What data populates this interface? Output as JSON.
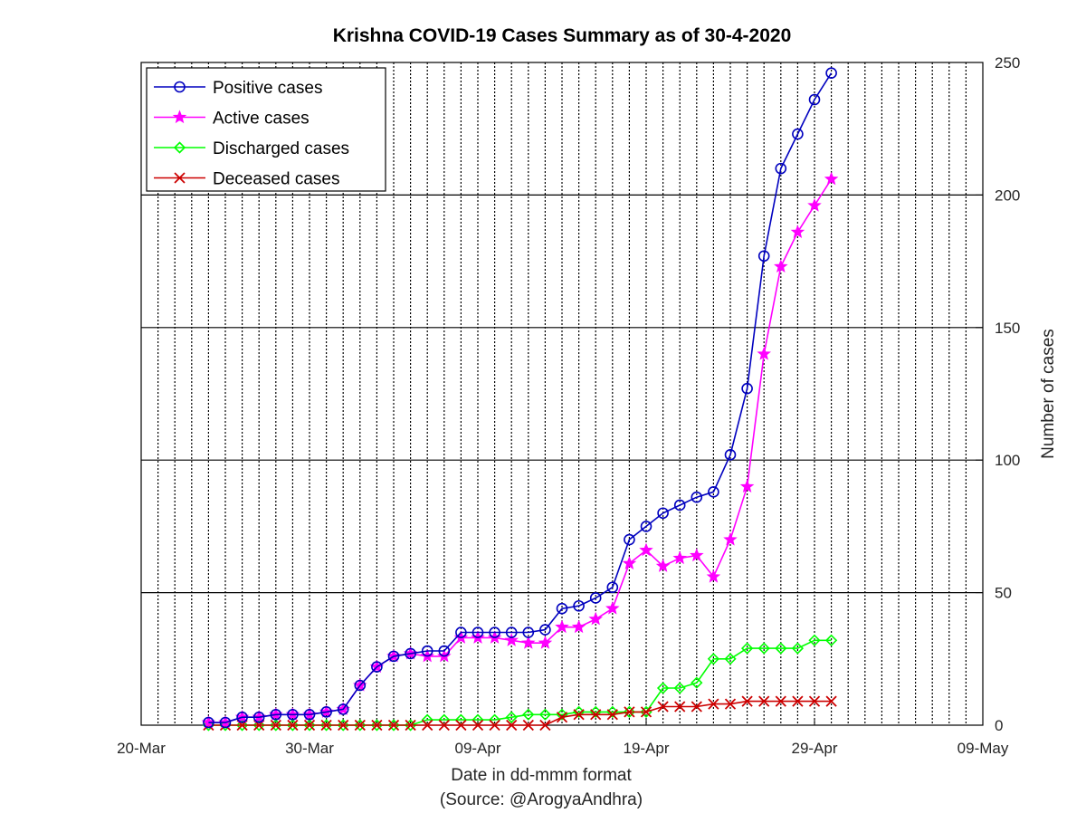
{
  "chart_data": {
    "type": "line",
    "title": "Krishna COVID-19 Cases Summary as of 30-4-2020",
    "xlabel": "Date in dd-mmm format",
    "xlabel_source": "(Source: @ArogyaAndhra)",
    "ylabel": "Number of cases",
    "x_ticks": [
      "20-Mar",
      "30-Mar",
      "09-Apr",
      "19-Apr",
      "29-Apr",
      "09-May"
    ],
    "y_ticks": [
      "0",
      "50",
      "100",
      "150",
      "200",
      "250"
    ],
    "xlim": [
      "2020-03-20",
      "2020-05-09"
    ],
    "ylim": [
      0,
      250
    ],
    "grid": {
      "x": "dotted-daily",
      "y": "solid"
    },
    "y_axis_position": "right",
    "legend_position": "top-left",
    "x": [
      "2020-03-24",
      "2020-03-25",
      "2020-03-26",
      "2020-03-27",
      "2020-03-28",
      "2020-03-29",
      "2020-03-30",
      "2020-03-31",
      "2020-04-01",
      "2020-04-02",
      "2020-04-03",
      "2020-04-04",
      "2020-04-05",
      "2020-04-06",
      "2020-04-07",
      "2020-04-08",
      "2020-04-09",
      "2020-04-10",
      "2020-04-11",
      "2020-04-12",
      "2020-04-13",
      "2020-04-14",
      "2020-04-15",
      "2020-04-16",
      "2020-04-17",
      "2020-04-18",
      "2020-04-19",
      "2020-04-20",
      "2020-04-21",
      "2020-04-22",
      "2020-04-23",
      "2020-04-24",
      "2020-04-25",
      "2020-04-26",
      "2020-04-27",
      "2020-04-28",
      "2020-04-29",
      "2020-04-30"
    ],
    "series": [
      {
        "name": "Positive cases",
        "color": "#0000bf",
        "marker": "circle",
        "values": [
          1,
          1,
          3,
          3,
          4,
          4,
          4,
          5,
          6,
          15,
          22,
          26,
          27,
          28,
          28,
          35,
          35,
          35,
          35,
          35,
          36,
          44,
          45,
          48,
          52,
          70,
          75,
          80,
          83,
          86,
          88,
          102,
          127,
          177,
          210,
          223,
          236,
          246
        ]
      },
      {
        "name": "Active cases",
        "color": "#ff00ff",
        "marker": "star",
        "values": [
          1,
          1,
          3,
          3,
          4,
          4,
          4,
          5,
          6,
          15,
          22,
          26,
          27,
          26,
          26,
          33,
          33,
          33,
          32,
          31,
          31,
          37,
          37,
          40,
          44,
          61,
          66,
          60,
          63,
          64,
          56,
          70,
          90,
          140,
          173,
          186,
          196,
          206
        ]
      },
      {
        "name": "Discharged cases",
        "color": "#00ff00",
        "marker": "diamond",
        "values": [
          0,
          0,
          0,
          0,
          0,
          0,
          0,
          0,
          0,
          0,
          0,
          0,
          0,
          2,
          2,
          2,
          2,
          2,
          3,
          4,
          4,
          4,
          5,
          5,
          5,
          5,
          5,
          14,
          14,
          16,
          25,
          25,
          29,
          29,
          29,
          29,
          32,
          32
        ]
      },
      {
        "name": "Deceased cases",
        "color": "#cc0000",
        "marker": "x",
        "values": [
          0,
          0,
          0,
          0,
          0,
          0,
          0,
          0,
          0,
          0,
          0,
          0,
          0,
          0,
          0,
          0,
          0,
          0,
          0,
          0,
          0,
          3,
          4,
          4,
          4,
          5,
          5,
          7,
          7,
          7,
          8,
          8,
          9,
          9,
          9,
          9,
          9,
          9
        ]
      }
    ]
  }
}
